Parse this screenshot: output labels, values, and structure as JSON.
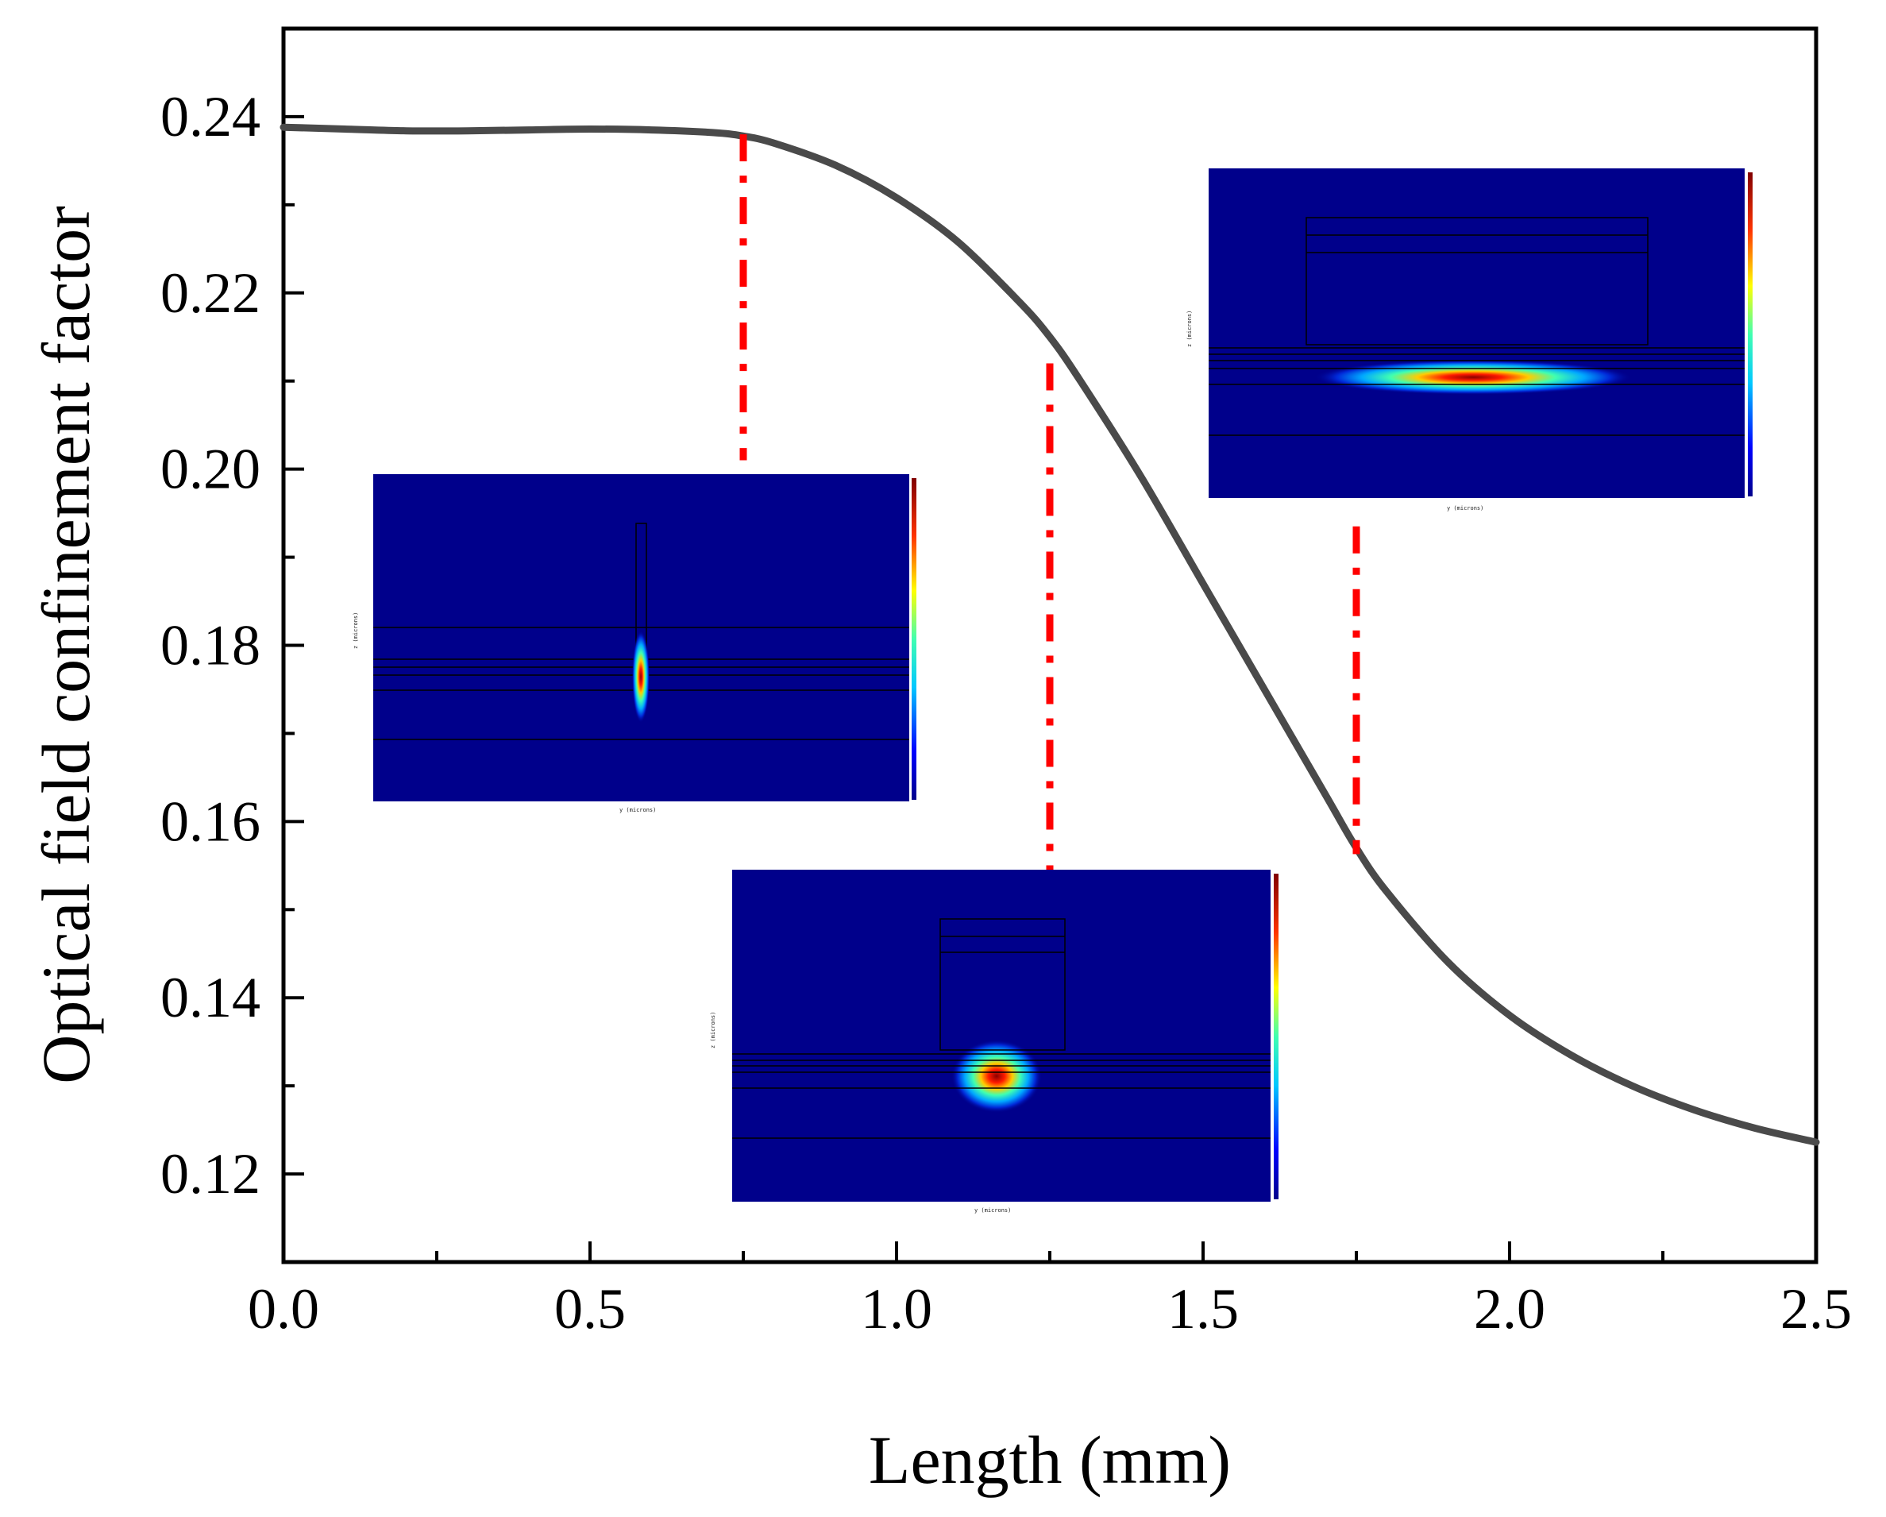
{
  "chart_data": {
    "type": "line",
    "xlabel": "Length (mm)",
    "ylabel": "Optical field confinement factor",
    "xlim": [
      0.0,
      2.5
    ],
    "ylim": [
      0.11,
      0.25
    ],
    "xticks": [
      "0.0",
      "0.5",
      "1.0",
      "1.5",
      "2.0",
      "2.5"
    ],
    "yticks": [
      "0.12",
      "0.14",
      "0.16",
      "0.18",
      "0.20",
      "0.22",
      "0.24"
    ],
    "series": [
      {
        "name": "confinement factor",
        "color": "#4a4a4a",
        "x": [
          0.0,
          0.1,
          0.2,
          0.3,
          0.4,
          0.5,
          0.6,
          0.7,
          0.75,
          0.8,
          0.9,
          1.0,
          1.1,
          1.2,
          1.25,
          1.3,
          1.4,
          1.5,
          1.6,
          1.7,
          1.75,
          1.8,
          1.9,
          2.0,
          2.1,
          2.2,
          2.3,
          2.4,
          2.5
        ],
        "y": [
          0.2388,
          0.2386,
          0.2384,
          0.2384,
          0.2385,
          0.2386,
          0.2385,
          0.2382,
          0.2378,
          0.237,
          0.2345,
          0.2308,
          0.2258,
          0.219,
          0.215,
          0.21,
          0.199,
          0.187,
          0.175,
          0.163,
          0.157,
          0.152,
          0.144,
          0.138,
          0.1335,
          0.13,
          0.1273,
          0.1252,
          0.1236
        ]
      }
    ],
    "markers": [
      {
        "x": 0.75,
        "y_top": 0.238,
        "y_bottom": 0.201
      },
      {
        "x": 1.25,
        "y_top": 0.212,
        "y_bottom": 0.1545
      },
      {
        "x": 1.75,
        "y_top": 0.1935,
        "y_bottom": 0.1563
      }
    ],
    "marker_color": "#ff0000",
    "insets": [
      {
        "name": "inset-narrow-ridge",
        "axis_labels": [
          "y (microns)",
          "z (microns)"
        ]
      },
      {
        "name": "inset-medium-ridge",
        "axis_labels": [
          "y (microns)",
          "z (microns)"
        ]
      },
      {
        "name": "inset-wide-ridge",
        "axis_labels": [
          "y (microns)",
          "z (microns)"
        ]
      }
    ]
  }
}
